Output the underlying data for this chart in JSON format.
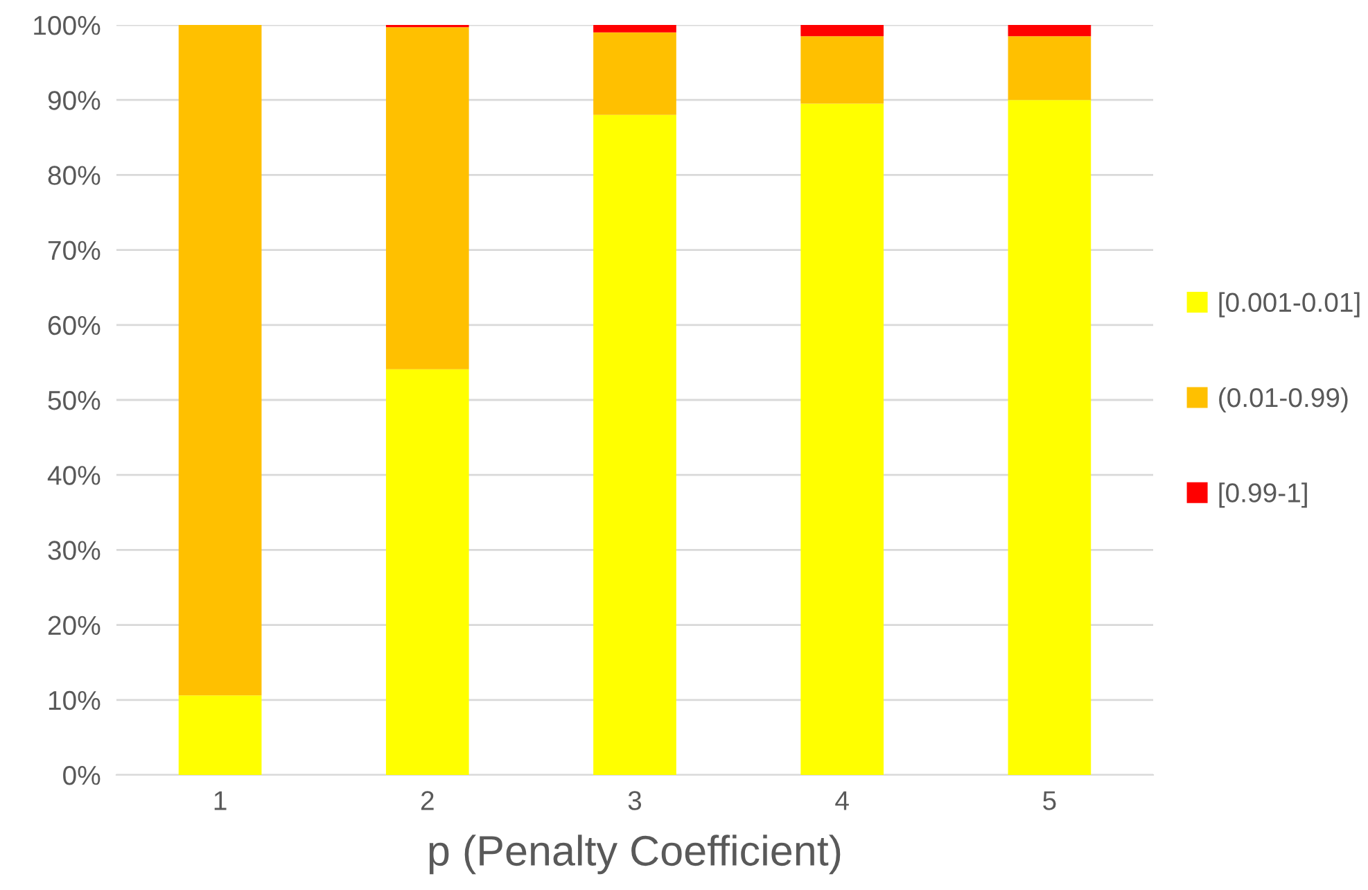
{
  "chart_data": {
    "type": "bar",
    "stacked": true,
    "xlabel": "p (Penalty Coefficient)",
    "categories": [
      "1",
      "2",
      "3",
      "4",
      "5"
    ],
    "series": [
      {
        "name": "[0.001-0.01]",
        "color": "#ffff00",
        "values": [
          10.6,
          54.1,
          88,
          89.5,
          90
        ]
      },
      {
        "name": "(0.01-0.99)",
        "color": "#ffc000",
        "values": [
          89.4,
          45.6,
          11,
          9,
          8.5
        ]
      },
      {
        "name": "[0.99-1]",
        "color": "#ff0000",
        "values": [
          0,
          0.3,
          1,
          1.5,
          1.5
        ]
      }
    ],
    "ylim": [
      0,
      100
    ],
    "yticks": [
      {
        "value": 0,
        "label": "0%"
      },
      {
        "value": 10,
        "label": "10%"
      },
      {
        "value": 20,
        "label": "20%"
      },
      {
        "value": 30,
        "label": "30%"
      },
      {
        "value": 40,
        "label": "40%"
      },
      {
        "value": 50,
        "label": "50%"
      },
      {
        "value": 60,
        "label": "60%"
      },
      {
        "value": 70,
        "label": "70%"
      },
      {
        "value": 80,
        "label": "80%"
      },
      {
        "value": 90,
        "label": "90%"
      },
      {
        "value": 100,
        "label": "100%"
      }
    ],
    "grid": "y",
    "legend": "right"
  }
}
